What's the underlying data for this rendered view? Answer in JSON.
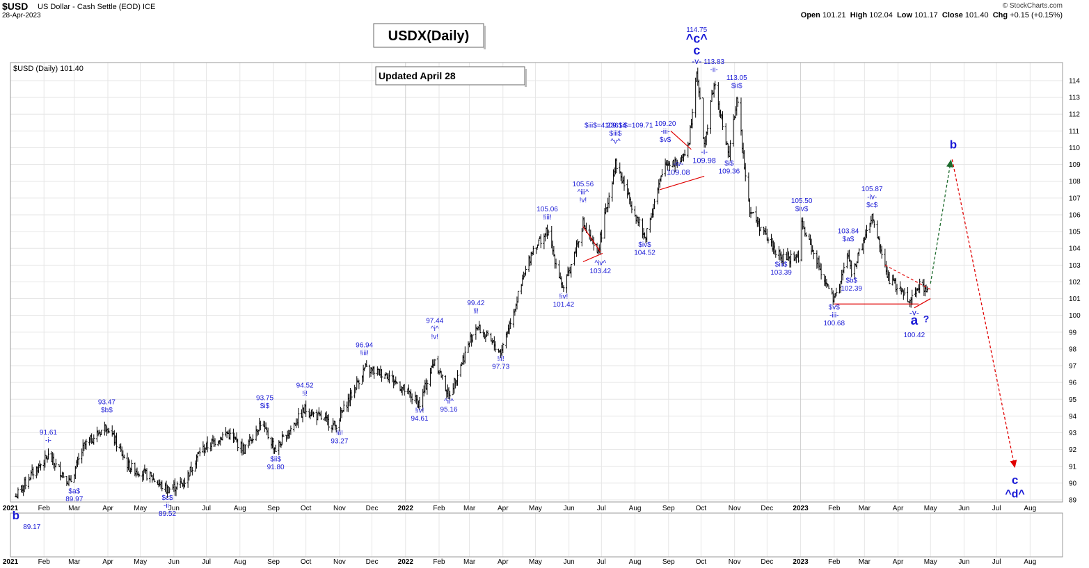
{
  "header": {
    "symbol": "$USD",
    "description": "US Dollar - Cash Settle (EOD)",
    "exchange": "ICE",
    "date": "28-Apr-2023",
    "credit": "© StockCharts.com",
    "open_label": "Open",
    "open": "101.21",
    "high_label": "High",
    "high": "102.04",
    "low_label": "Low",
    "low": "101.17",
    "close_label": "Close",
    "close": "101.40",
    "chg_label": "Chg",
    "chg": "+0.15 (+0.15%)"
  },
  "legend": "$USD (Daily) 101.40",
  "boxes": {
    "title": "USDX(Daily)",
    "updated": "Updated April 28"
  },
  "chart_data": {
    "type": "ohlc",
    "y_ticks": [
      89,
      90,
      91,
      92,
      93,
      94,
      95,
      96,
      97,
      98,
      99,
      100,
      101,
      102,
      103,
      104,
      105,
      106,
      107,
      108,
      109,
      110,
      111,
      112,
      113,
      114
    ],
    "ylim": [
      88.7,
      115.0
    ],
    "x_labels": [
      {
        "label": "2021",
        "date": "2021-01-01",
        "bold": true
      },
      {
        "label": "Feb",
        "date": "2021-02-01"
      },
      {
        "label": "Mar",
        "date": "2021-03-01"
      },
      {
        "label": "Apr",
        "date": "2021-04-01"
      },
      {
        "label": "May",
        "date": "2021-05-01"
      },
      {
        "label": "Jun",
        "date": "2021-06-01"
      },
      {
        "label": "Jul",
        "date": "2021-07-01"
      },
      {
        "label": "Aug",
        "date": "2021-08-01"
      },
      {
        "label": "Sep",
        "date": "2021-09-01"
      },
      {
        "label": "Oct",
        "date": "2021-10-01"
      },
      {
        "label": "Nov",
        "date": "2021-11-01"
      },
      {
        "label": "Dec",
        "date": "2021-12-01"
      },
      {
        "label": "2022",
        "date": "2022-01-01",
        "bold": true
      },
      {
        "label": "Feb",
        "date": "2022-02-01"
      },
      {
        "label": "Mar",
        "date": "2022-03-01"
      },
      {
        "label": "Apr",
        "date": "2022-04-01"
      },
      {
        "label": "May",
        "date": "2022-05-01"
      },
      {
        "label": "Jun",
        "date": "2022-06-01"
      },
      {
        "label": "Jul",
        "date": "2022-07-01"
      },
      {
        "label": "Aug",
        "date": "2022-08-01"
      },
      {
        "label": "Sep",
        "date": "2022-09-01"
      },
      {
        "label": "Oct",
        "date": "2022-10-01"
      },
      {
        "label": "Nov",
        "date": "2022-11-01"
      },
      {
        "label": "Dec",
        "date": "2022-12-01"
      },
      {
        "label": "2023",
        "date": "2023-01-01",
        "bold": true
      },
      {
        "label": "Feb",
        "date": "2023-02-01"
      },
      {
        "label": "Mar",
        "date": "2023-03-01"
      },
      {
        "label": "Apr",
        "date": "2023-04-01"
      },
      {
        "label": "May",
        "date": "2023-05-01"
      },
      {
        "label": "Jun",
        "date": "2023-06-01"
      },
      {
        "label": "Jul",
        "date": "2023-07-01"
      },
      {
        "label": "Aug",
        "date": "2023-08-01"
      }
    ],
    "xlim": [
      "2021-01-01",
      "2023-08-31"
    ],
    "price_path": [
      [
        "2021-01-06",
        89.2
      ],
      [
        "2021-01-20",
        90.5
      ],
      [
        "2021-02-05",
        91.6
      ],
      [
        "2021-02-25",
        90.0
      ],
      [
        "2021-03-10",
        92.2
      ],
      [
        "2021-03-31",
        93.45
      ],
      [
        "2021-04-20",
        91.0
      ],
      [
        "2021-05-10",
        90.4
      ],
      [
        "2021-05-25",
        89.6
      ],
      [
        "2021-06-10",
        90.0
      ],
      [
        "2021-06-25",
        91.9
      ],
      [
        "2021-07-20",
        93.0
      ],
      [
        "2021-08-05",
        92.0
      ],
      [
        "2021-08-20",
        93.6
      ],
      [
        "2021-09-03",
        92.0
      ],
      [
        "2021-09-30",
        94.4
      ],
      [
        "2021-10-28",
        93.4
      ],
      [
        "2021-11-24",
        96.8
      ],
      [
        "2021-12-15",
        96.5
      ],
      [
        "2022-01-14",
        94.7
      ],
      [
        "2022-01-28",
        97.4
      ],
      [
        "2022-02-10",
        95.2
      ],
      [
        "2022-03-07",
        99.4
      ],
      [
        "2022-03-30",
        97.8
      ],
      [
        "2022-04-28",
        103.9
      ],
      [
        "2022-05-12",
        105.0
      ],
      [
        "2022-05-27",
        101.5
      ],
      [
        "2022-06-14",
        105.5
      ],
      [
        "2022-06-27",
        103.6
      ],
      [
        "2022-07-14",
        109.1
      ],
      [
        "2022-08-10",
        104.6
      ],
      [
        "2022-08-29",
        109.1
      ],
      [
        "2022-09-13",
        109.2
      ],
      [
        "2022-09-20",
        110.5
      ],
      [
        "2022-09-27",
        114.7
      ],
      [
        "2022-10-04",
        110.1
      ],
      [
        "2022-10-13",
        113.8
      ],
      [
        "2022-10-27",
        109.5
      ],
      [
        "2022-11-03",
        113.0
      ],
      [
        "2022-11-15",
        106.3
      ],
      [
        "2022-12-01",
        104.6
      ],
      [
        "2022-12-14",
        103.4
      ],
      [
        "2022-12-30",
        103.5
      ],
      [
        "2023-01-02",
        105.4
      ],
      [
        "2023-02-01",
        100.8
      ],
      [
        "2023-02-14",
        103.7
      ],
      [
        "2023-02-17",
        102.4
      ],
      [
        "2023-03-08",
        105.8
      ],
      [
        "2023-03-23",
        102.2
      ],
      [
        "2023-04-13",
        100.9
      ],
      [
        "2023-04-20",
        101.9
      ],
      [
        "2023-04-28",
        101.4
      ]
    ],
    "lines": [
      {
        "style": "solid",
        "color": "#e00000",
        "points": [
          [
            "2023-02-01",
            100.68
          ],
          [
            "2023-04-20",
            100.68
          ]
        ]
      },
      {
        "style": "dashed",
        "color": "#e00000",
        "points": [
          [
            "2023-03-20",
            103.0
          ],
          [
            "2023-05-01",
            101.55
          ]
        ]
      },
      {
        "style": "solid",
        "color": "#e00000",
        "points": [
          [
            "2023-04-16",
            100.45
          ],
          [
            "2023-05-01",
            101.0
          ]
        ]
      },
      {
        "style": "solid",
        "color": "#e00000",
        "points": [
          [
            "2022-06-14",
            105.3
          ],
          [
            "2022-06-30",
            103.8
          ]
        ]
      },
      {
        "style": "solid",
        "color": "#e00000",
        "points": [
          [
            "2022-06-14",
            103.2
          ],
          [
            "2022-07-02",
            103.7
          ]
        ]
      },
      {
        "style": "solid",
        "color": "#e00000",
        "points": [
          [
            "2022-09-03",
            111.0
          ],
          [
            "2022-09-22",
            109.9
          ]
        ]
      },
      {
        "style": "solid",
        "color": "#e00000",
        "points": [
          [
            "2022-08-24",
            107.5
          ],
          [
            "2022-10-04",
            108.3
          ]
        ]
      }
    ],
    "arrows": [
      {
        "color": "#1c6a2c",
        "from": [
          "2023-05-01",
          101.9
        ],
        "to": [
          "2023-05-20",
          109.3
        ]
      },
      {
        "color": "#e00000",
        "from": [
          "2023-05-21",
          109.3
        ],
        "to": [
          "2023-07-18",
          90.9
        ]
      }
    ],
    "annotations": [
      {
        "lines": [
          "91.61",
          "-i-"
        ],
        "date": "2021-02-05",
        "price": 92.9,
        "size": 10
      },
      {
        "lines": [
          "$a$",
          "89.97"
        ],
        "date": "2021-03-01",
        "price": 89.4,
        "size": 10
      },
      {
        "lines": [
          "93.47",
          "$b$"
        ],
        "date": "2021-03-31",
        "price": 94.7,
        "size": 10
      },
      {
        "lines": [
          "$c$",
          "-ii-",
          "89.52"
        ],
        "date": "2021-05-26",
        "price": 89.0,
        "size": 10
      },
      {
        "lines": [
          "93.75",
          "$i$"
        ],
        "date": "2021-08-24",
        "price": 94.95,
        "size": 10
      },
      {
        "lines": [
          "$ii$",
          "91.80"
        ],
        "date": "2021-09-03",
        "price": 91.3,
        "size": 10
      },
      {
        "lines": [
          "94.52",
          "!i!"
        ],
        "date": "2021-09-30",
        "price": 95.7,
        "size": 10
      },
      {
        "lines": [
          "!ii!",
          "93.27"
        ],
        "date": "2021-11-01",
        "price": 92.85,
        "size": 10
      },
      {
        "lines": [
          "96.94",
          "!iii!"
        ],
        "date": "2021-11-24",
        "price": 98.1,
        "size": 10
      },
      {
        "lines": [
          "!iv!",
          "94.61"
        ],
        "date": "2022-01-14",
        "price": 94.2,
        "size": 10
      },
      {
        "lines": [
          "97.44",
          "^i^",
          "!v!"
        ],
        "date": "2022-01-28",
        "price": 99.55,
        "size": 10
      },
      {
        "lines": [
          "^ii^",
          "95.16"
        ],
        "date": "2022-02-10",
        "price": 94.75,
        "size": 10
      },
      {
        "lines": [
          "99.42",
          "!i!"
        ],
        "date": "2022-03-07",
        "price": 100.6,
        "size": 10
      },
      {
        "lines": [
          "!ii!",
          "97.73"
        ],
        "date": "2022-03-30",
        "price": 97.3,
        "size": 10
      },
      {
        "lines": [
          "105.06",
          "!iii!"
        ],
        "date": "2022-05-12",
        "price": 106.2,
        "size": 10
      },
      {
        "lines": [
          "!iv!",
          "101.42"
        ],
        "date": "2022-05-27",
        "price": 101.0,
        "size": 10
      },
      {
        "lines": [
          "105.56",
          "^iii^",
          "!v!"
        ],
        "date": "2022-06-14",
        "price": 107.7,
        "size": 10
      },
      {
        "lines": [
          "^iv^",
          "103.42"
        ],
        "date": "2022-06-30",
        "price": 103.0,
        "size": 10
      },
      {
        "lines": [
          "$iii$=4.236$i$=109.71"
        ],
        "date": "2022-07-17",
        "price": 111.2,
        "size": 10
      },
      {
        "lines": [
          "109.14",
          "$iii$",
          "^v^"
        ],
        "date": "2022-07-14",
        "price": 111.2,
        "size": 10,
        "skipFirstRow": true
      },
      {
        "lines": [
          "$iv$",
          "104.52"
        ],
        "date": "2022-08-10",
        "price": 104.1,
        "size": 10
      },
      {
        "lines": [
          "109.20",
          "-iii-",
          "$v$"
        ],
        "date": "2022-08-29",
        "price": 111.3,
        "size": 10
      },
      {
        "lines": [
          "-iv-",
          "109.08"
        ],
        "date": "2022-09-10",
        "price": 108.9,
        "size": 11
      },
      {
        "lines": [
          "-i-",
          "109.98"
        ],
        "date": "2022-10-04",
        "price": 109.6,
        "size": 11
      },
      {
        "lines": [
          "113.83",
          "-ii-"
        ],
        "date": "2022-10-13",
        "price": 115.0,
        "size": 10
      },
      {
        "lines": [
          "113.05",
          "$ii$"
        ],
        "date": "2022-11-03",
        "price": 114.05,
        "size": 10
      },
      {
        "lines": [
          "$i$",
          "109.36"
        ],
        "date": "2022-10-27",
        "price": 108.95,
        "size": 10
      },
      {
        "lines": [
          "$iii$",
          "103.39"
        ],
        "date": "2022-12-14",
        "price": 102.9,
        "size": 10
      },
      {
        "lines": [
          "105.50",
          "$iv$"
        ],
        "date": "2023-01-02",
        "price": 106.7,
        "size": 10
      },
      {
        "lines": [
          "103.84",
          "$a$"
        ],
        "date": "2023-02-14",
        "price": 104.9,
        "size": 10
      },
      {
        "lines": [
          "$b$",
          "102.39"
        ],
        "date": "2023-02-17",
        "price": 101.95,
        "size": 10
      },
      {
        "lines": [
          "105.87",
          "-iv-",
          "$c$"
        ],
        "date": "2023-03-08",
        "price": 107.4,
        "size": 10
      },
      {
        "lines": [
          "$v$",
          "-iii-",
          "100.68"
        ],
        "date": "2023-02-01",
        "price": 100.35,
        "size": 10
      }
    ],
    "big_labels": [
      {
        "text": "114.75",
        "date": "2022-09-27",
        "price": 116.9,
        "size": 10,
        "color": "#1a1ad6",
        "bold": false
      },
      {
        "text": "^c^",
        "date": "2022-09-27",
        "price": 116.25,
        "size": 18,
        "color": "#1a1ad6",
        "bold": true
      },
      {
        "text": "c",
        "date": "2022-09-27",
        "price": 115.55,
        "size": 18,
        "color": "#1a1ad6",
        "bold": true
      },
      {
        "text": "-v-",
        "date": "2022-09-27",
        "price": 115.0,
        "size": 12,
        "color": "#1a1ad6",
        "bold": false
      },
      {
        "text": "-v-",
        "date": "2023-04-16",
        "price": 100.0,
        "size": 12,
        "color": "#1a1ad6",
        "bold": false
      },
      {
        "text": "a",
        "date": "2023-04-16",
        "price": 99.45,
        "size": 19,
        "color": "#1a1ad6",
        "bold": true
      },
      {
        "text": "?",
        "date": "2023-04-27",
        "price": 99.6,
        "size": 14,
        "color": "#1a1ad6",
        "bold": true
      },
      {
        "text": "100.42",
        "date": "2023-04-16",
        "price": 98.7,
        "size": 10,
        "color": "#1a1ad6",
        "bold": false
      },
      {
        "text": "b",
        "date": "2023-05-22",
        "price": 109.95,
        "size": 17,
        "color": "#1a1ad6",
        "bold": true
      },
      {
        "text": "c",
        "date": "2023-07-18",
        "price": 89.95,
        "size": 17,
        "color": "#1a1ad6",
        "bold": true
      },
      {
        "text": "^d^",
        "date": "2023-07-18",
        "price": 89.15,
        "size": 16,
        "color": "#1a1ad6",
        "bold": true
      }
    ],
    "bottom_labels": [
      {
        "text": "b",
        "date": "2021-01-06",
        "size": 17,
        "bold": true
      },
      {
        "text": "89.17",
        "date": "2021-01-06",
        "size": 10,
        "bold": false
      }
    ]
  }
}
